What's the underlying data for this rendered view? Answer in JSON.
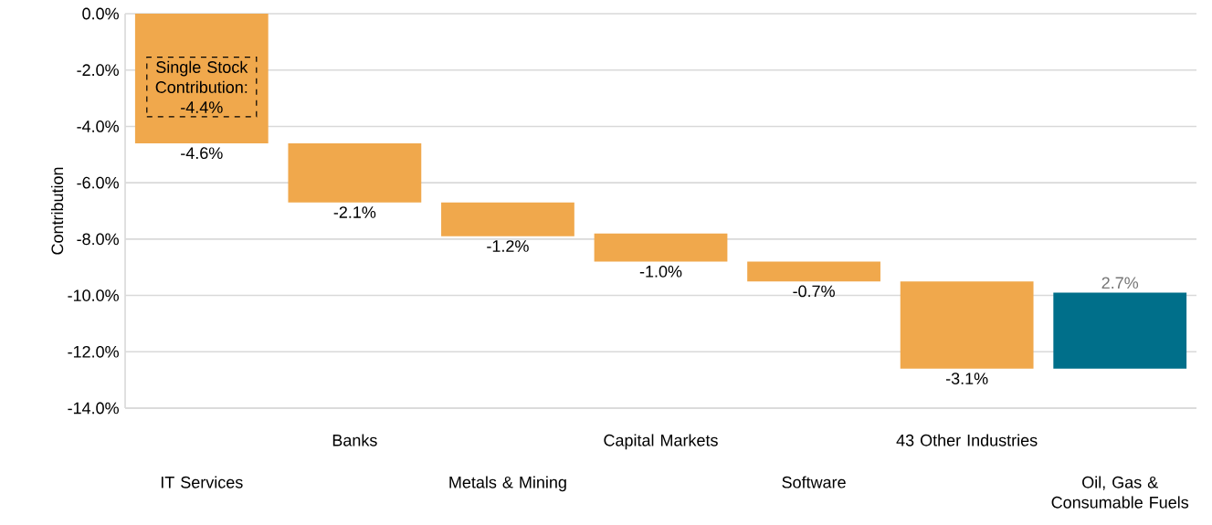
{
  "chart_data": {
    "type": "bar",
    "ylabel": "Contribution",
    "categories": [
      "IT Services",
      "Banks",
      "Metals & Mining",
      "Capital Markets",
      "Software",
      "43 Other Industries",
      "Oil, Gas & Consumable Fuels"
    ],
    "values": [
      -4.6,
      -2.1,
      -1.2,
      -1.0,
      -0.7,
      -3.1,
      2.7
    ],
    "base": [
      0,
      -4.6,
      -6.7,
      -7.8,
      -8.8,
      -9.5,
      -12.6
    ],
    "colors": [
      "#f0a84c",
      "#f0a84c",
      "#f0a84c",
      "#f0a84c",
      "#f0a84c",
      "#f0a84c",
      "#006f8a"
    ],
    "value_labels": [
      "-4.6%",
      "-2.1%",
      "-1.2%",
      "-1.0%",
      "-0.7%",
      "-3.1%",
      "2.7%"
    ],
    "ylim": [
      -14,
      0
    ],
    "yticks": [
      {
        "value": 0,
        "label": "0.0%"
      },
      {
        "value": -2,
        "label": "-2.0%"
      },
      {
        "value": -4,
        "label": "-4.0%"
      },
      {
        "value": -6,
        "label": "-6.0%"
      },
      {
        "value": -8,
        "label": "-8.0%"
      },
      {
        "value": -10,
        "label": "-10.0%"
      },
      {
        "value": -12,
        "label": "-12.0%"
      },
      {
        "value": -14,
        "label": "-14.0%"
      }
    ],
    "grid": "y",
    "annotations": [
      "Single Stock Contribution: -4.4%"
    ]
  }
}
